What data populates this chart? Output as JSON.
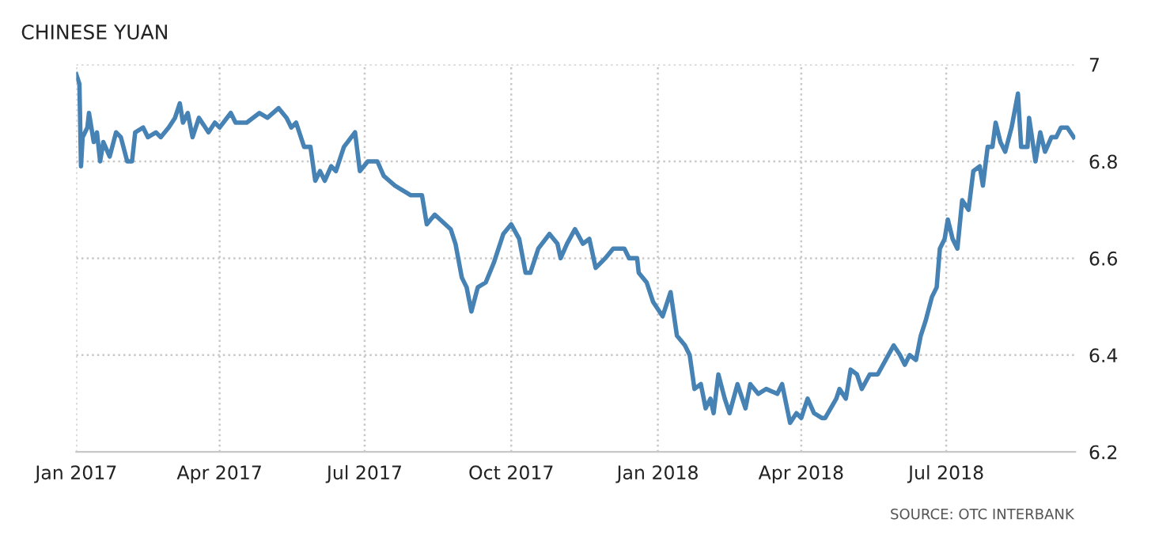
{
  "chart_data": {
    "type": "line",
    "title": "CHINESE YUAN",
    "annotations": [
      "SOURCE: OTC INTERBANK"
    ],
    "series": [
      {
        "color": "#4682b4",
        "x": [
          "2017-01-01",
          "2017-01-03",
          "2017-01-04",
          "2017-01-05",
          "2017-01-08",
          "2017-01-09",
          "2017-01-12",
          "2017-01-14",
          "2017-01-16",
          "2017-01-18",
          "2017-01-22",
          "2017-01-26",
          "2017-01-29",
          "2017-02-02",
          "2017-02-05",
          "2017-02-07",
          "2017-02-12",
          "2017-02-15",
          "2017-02-20",
          "2017-02-23",
          "2017-02-28",
          "2017-03-04",
          "2017-03-07",
          "2017-03-09",
          "2017-03-12",
          "2017-03-15",
          "2017-03-19",
          "2017-03-25",
          "2017-03-29",
          "2017-04-01",
          "2017-04-08",
          "2017-04-11",
          "2017-04-18",
          "2017-04-26",
          "2017-05-01",
          "2017-05-08",
          "2017-05-13",
          "2017-05-16",
          "2017-05-19",
          "2017-05-24",
          "2017-05-28",
          "2017-05-31",
          "2017-06-03",
          "2017-06-06",
          "2017-06-10",
          "2017-06-13",
          "2017-06-18",
          "2017-06-25",
          "2017-06-28",
          "2017-07-03",
          "2017-07-09",
          "2017-07-13",
          "2017-07-20",
          "2017-07-30",
          "2017-08-06",
          "2017-08-09",
          "2017-08-14",
          "2017-08-24",
          "2017-08-27",
          "2017-08-31",
          "2017-09-03",
          "2017-09-06",
          "2017-09-10",
          "2017-09-15",
          "2017-09-20",
          "2017-09-26",
          "2017-10-01",
          "2017-10-06",
          "2017-10-10",
          "2017-10-13",
          "2017-10-18",
          "2017-10-25",
          "2017-10-30",
          "2017-11-01",
          "2017-11-05",
          "2017-11-10",
          "2017-11-15",
          "2017-11-19",
          "2017-11-23",
          "2017-11-29",
          "2017-12-04",
          "2017-12-11",
          "2017-12-14",
          "2017-12-19",
          "2017-12-20",
          "2017-12-25",
          "2017-12-29",
          "2018-01-04",
          "2018-01-09",
          "2018-01-13",
          "2018-01-18",
          "2018-01-21",
          "2018-01-24",
          "2018-01-28",
          "2018-01-31",
          "2018-02-03",
          "2018-02-05",
          "2018-02-08",
          "2018-02-12",
          "2018-02-15",
          "2018-02-20",
          "2018-02-25",
          "2018-02-28",
          "2018-03-05",
          "2018-03-10",
          "2018-03-17",
          "2018-03-20",
          "2018-03-25",
          "2018-03-29",
          "2018-04-01",
          "2018-04-05",
          "2018-04-09",
          "2018-04-14",
          "2018-04-16",
          "2018-04-23",
          "2018-04-25",
          "2018-04-29",
          "2018-05-02",
          "2018-05-06",
          "2018-05-09",
          "2018-05-14",
          "2018-05-19",
          "2018-05-24",
          "2018-05-29",
          "2018-06-02",
          "2018-06-05",
          "2018-06-08",
          "2018-06-12",
          "2018-06-15",
          "2018-06-18",
          "2018-06-22",
          "2018-06-25",
          "2018-06-27",
          "2018-06-30",
          "2018-07-02",
          "2018-07-05",
          "2018-07-08",
          "2018-07-11",
          "2018-07-15",
          "2018-07-18",
          "2018-07-22",
          "2018-07-24",
          "2018-07-27",
          "2018-07-30",
          "2018-08-01",
          "2018-08-04",
          "2018-08-07",
          "2018-08-11",
          "2018-08-15",
          "2018-08-17",
          "2018-08-21",
          "2018-08-22",
          "2018-08-26",
          "2018-08-29",
          "2018-09-01",
          "2018-09-05",
          "2018-09-08",
          "2018-09-11",
          "2018-09-15",
          "2018-09-19"
        ],
        "values": [
          6.98,
          6.96,
          6.79,
          6.85,
          6.87,
          6.9,
          6.84,
          6.86,
          6.8,
          6.84,
          6.81,
          6.86,
          6.85,
          6.8,
          6.8,
          6.86,
          6.87,
          6.85,
          6.86,
          6.85,
          6.87,
          6.89,
          6.92,
          6.88,
          6.9,
          6.85,
          6.89,
          6.86,
          6.88,
          6.87,
          6.9,
          6.88,
          6.88,
          6.9,
          6.89,
          6.91,
          6.89,
          6.87,
          6.88,
          6.83,
          6.83,
          6.76,
          6.78,
          6.76,
          6.79,
          6.78,
          6.83,
          6.86,
          6.78,
          6.8,
          6.8,
          6.77,
          6.75,
          6.73,
          6.73,
          6.67,
          6.69,
          6.66,
          6.63,
          6.56,
          6.54,
          6.49,
          6.54,
          6.55,
          6.59,
          6.65,
          6.67,
          6.64,
          6.57,
          6.57,
          6.62,
          6.65,
          6.63,
          6.6,
          6.63,
          6.66,
          6.63,
          6.64,
          6.58,
          6.6,
          6.62,
          6.62,
          6.6,
          6.6,
          6.57,
          6.55,
          6.51,
          6.48,
          6.53,
          6.44,
          6.42,
          6.4,
          6.33,
          6.34,
          6.29,
          6.31,
          6.28,
          6.36,
          6.31,
          6.28,
          6.34,
          6.29,
          6.34,
          6.32,
          6.33,
          6.32,
          6.34,
          6.26,
          6.28,
          6.27,
          6.31,
          6.28,
          6.27,
          6.27,
          6.31,
          6.33,
          6.31,
          6.37,
          6.36,
          6.33,
          6.36,
          6.36,
          6.39,
          6.42,
          6.4,
          6.38,
          6.4,
          6.39,
          6.44,
          6.47,
          6.52,
          6.54,
          6.62,
          6.64,
          6.68,
          6.64,
          6.62,
          6.72,
          6.7,
          6.78,
          6.79,
          6.75,
          6.83,
          6.83,
          6.88,
          6.84,
          6.82,
          6.87,
          6.94,
          6.83,
          6.83,
          6.89,
          6.8,
          6.86,
          6.82,
          6.85,
          6.85,
          6.87,
          6.87,
          6.85
        ]
      }
    ],
    "xlim": [
      "2017-01-01",
      "2018-09-20"
    ],
    "xticks": [
      {
        "value": "2017-01-01",
        "label": "Jan 2017"
      },
      {
        "value": "2017-04-01",
        "label": "Apr 2017"
      },
      {
        "value": "2017-07-01",
        "label": "Jul 2017"
      },
      {
        "value": "2017-10-01",
        "label": "Oct 2017"
      },
      {
        "value": "2018-01-01",
        "label": "Jan 2018"
      },
      {
        "value": "2018-04-01",
        "label": "Apr 2018"
      },
      {
        "value": "2018-07-01",
        "label": "Jul 2018"
      }
    ],
    "ylim": [
      6.2,
      7
    ],
    "yticks": [
      6.2,
      6.4,
      6.6,
      6.8,
      7
    ],
    "grid": true,
    "line_style": "solid",
    "marker": "none"
  }
}
